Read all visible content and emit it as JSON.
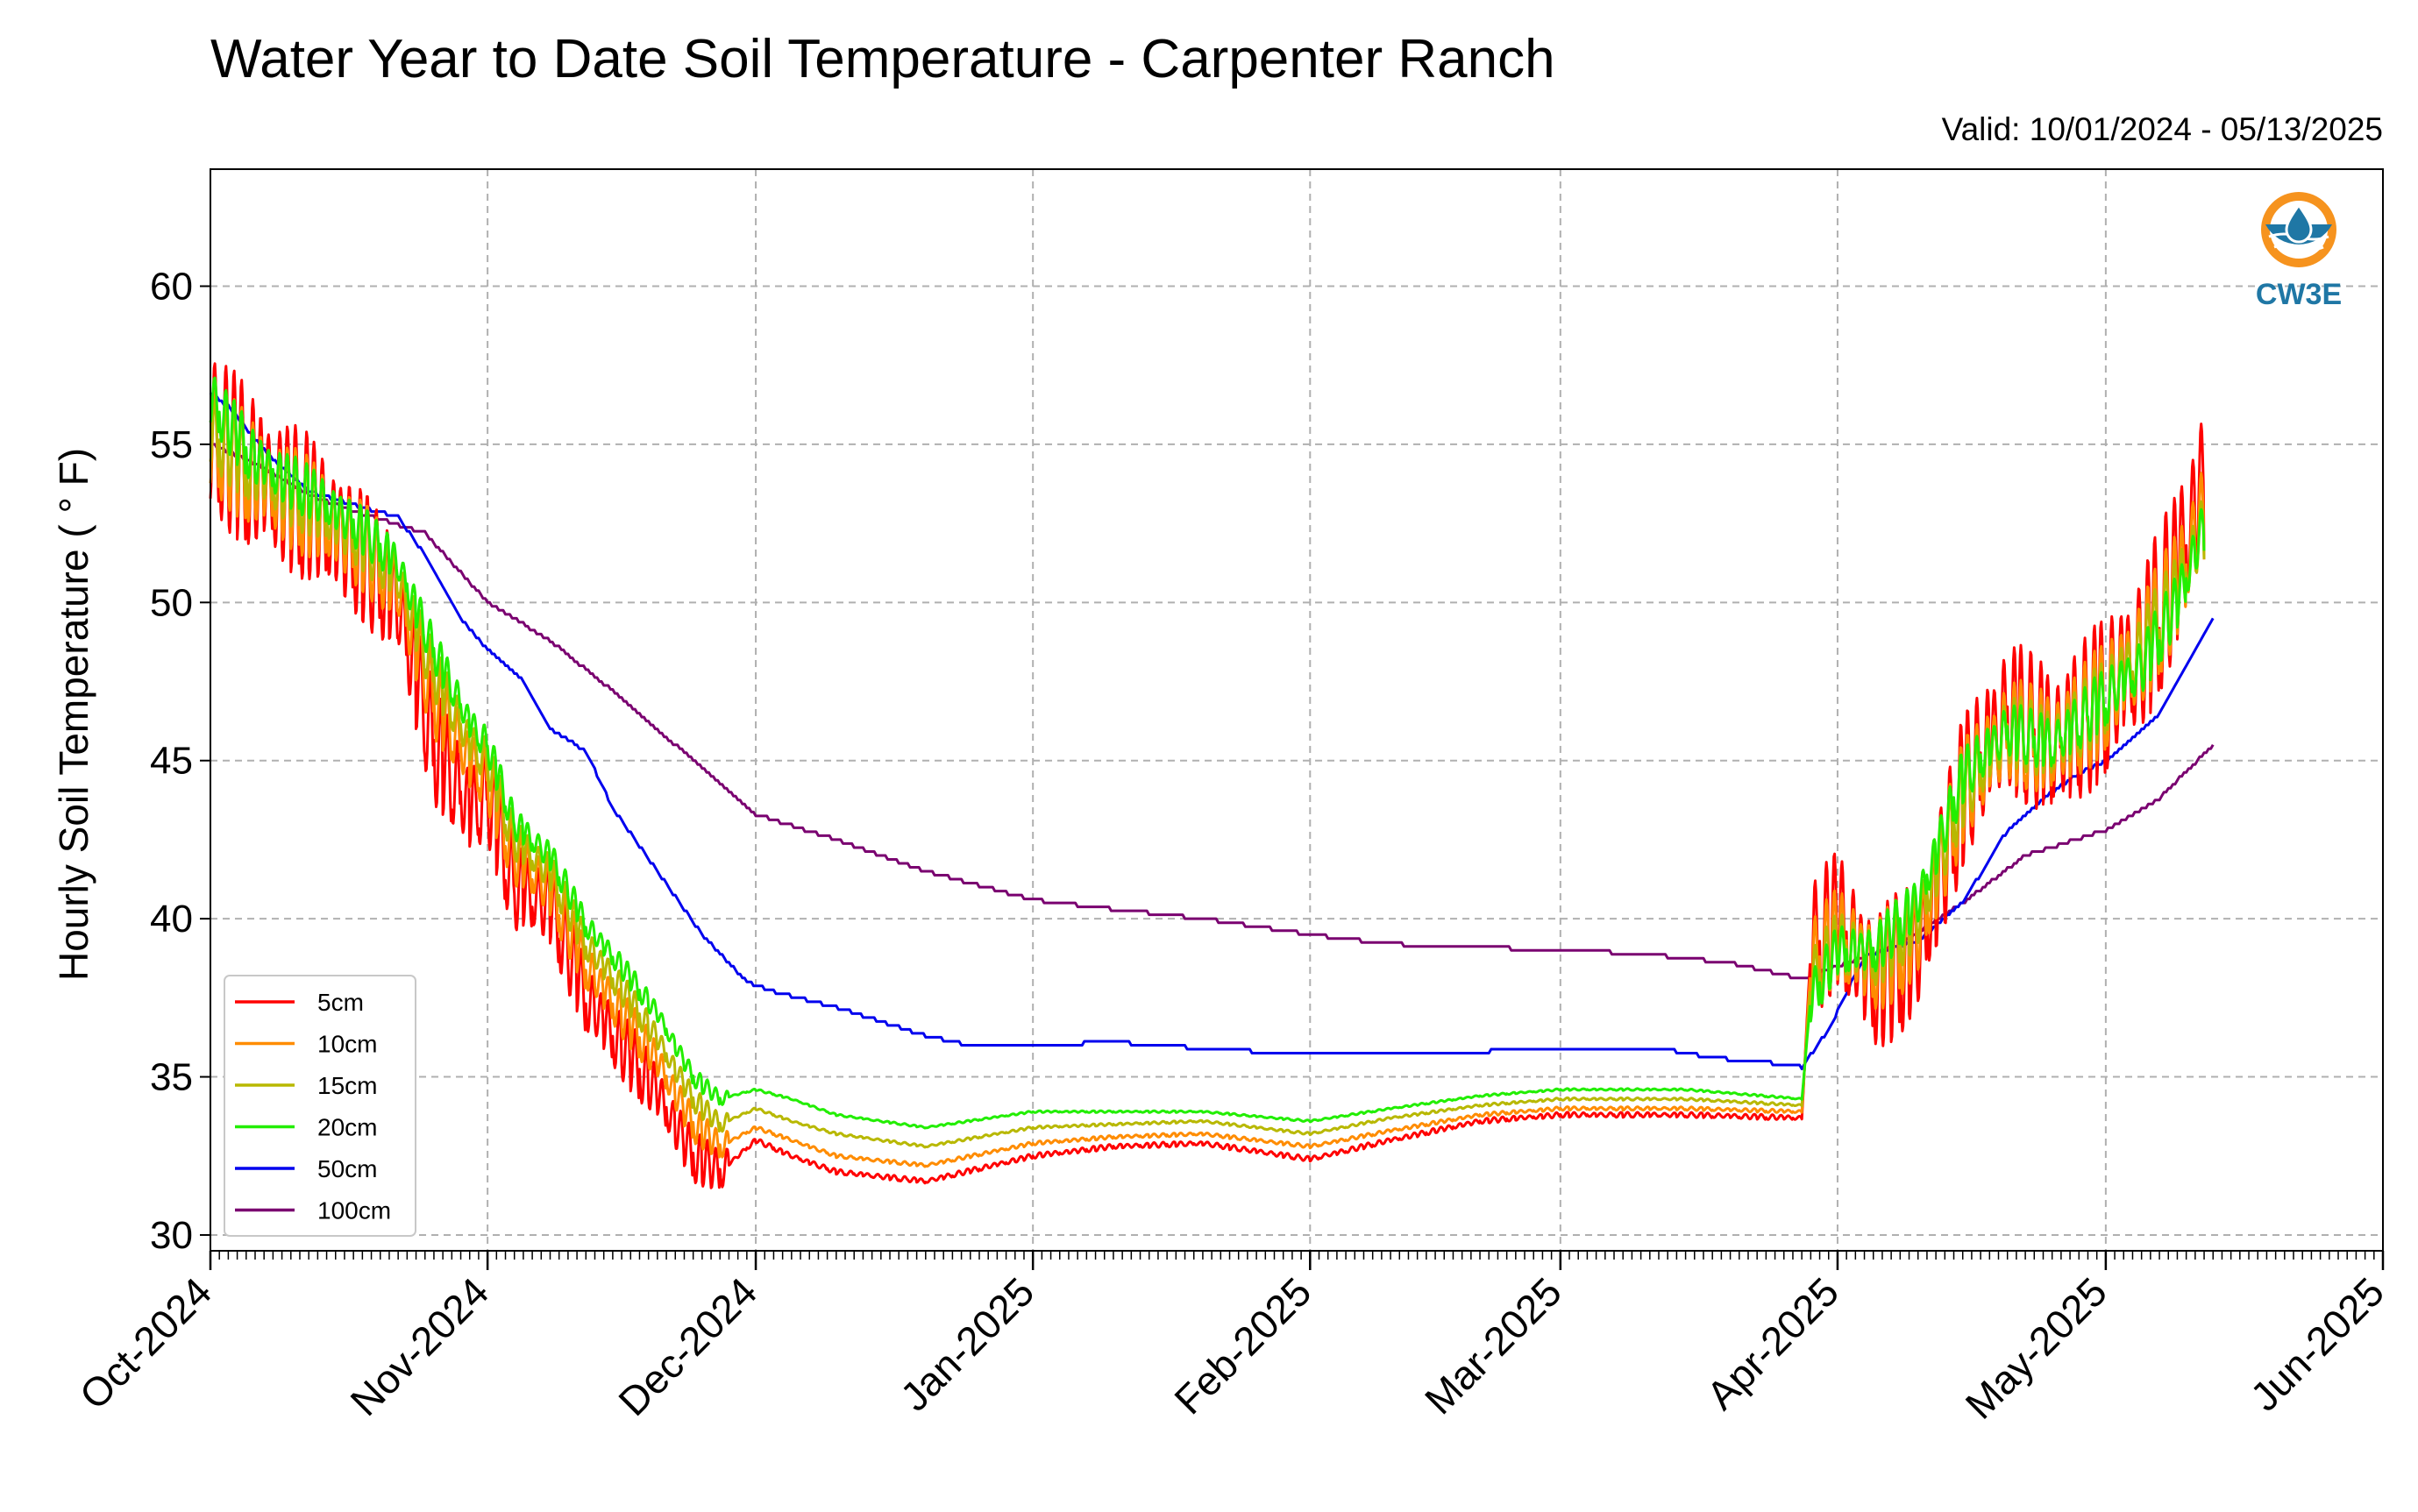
{
  "chart_data": {
    "type": "line",
    "title": "Water Year to Date Soil Temperature - Carpenter Ranch",
    "subtitle": "Valid: 10/01/2024 - 05/13/2025",
    "xlabel": "",
    "ylabel": "Hourly Soil Temperature ( ° F)",
    "xlim": [
      "2024-10-01",
      "2025-06-01"
    ],
    "ylim": [
      29.5,
      63.7
    ],
    "yticks": [
      30,
      35,
      40,
      45,
      50,
      55,
      60
    ],
    "xticks": [
      {
        "date": "2024-10-01",
        "label": "Oct-2024"
      },
      {
        "date": "2024-11-01",
        "label": "Nov-2024"
      },
      {
        "date": "2024-12-01",
        "label": "Dec-2024"
      },
      {
        "date": "2025-01-01",
        "label": "Jan-2025"
      },
      {
        "date": "2025-02-01",
        "label": "Feb-2025"
      },
      {
        "date": "2025-03-01",
        "label": "Mar-2025"
      },
      {
        "date": "2025-04-01",
        "label": "Apr-2025"
      },
      {
        "date": "2025-05-01",
        "label": "May-2025"
      },
      {
        "date": "2025-06-01",
        "label": "Jun-2025"
      }
    ],
    "grid": true,
    "legend_position": "lower-left",
    "logo_text": "CW3E",
    "series": [
      {
        "name": "5cm",
        "color": "#ff0000",
        "amplitude": 5.5,
        "points": [
          [
            "2024-10-01",
            55.5
          ],
          [
            "2024-10-06",
            54.0
          ],
          [
            "2024-10-12",
            53.0
          ],
          [
            "2024-10-18",
            51.5
          ],
          [
            "2024-10-22",
            50.0
          ],
          [
            "2024-10-26",
            45.5
          ],
          [
            "2024-10-30",
            43.5
          ],
          [
            "2024-11-01",
            44.0
          ],
          [
            "2024-11-04",
            41.0
          ],
          [
            "2024-11-08",
            40.5
          ],
          [
            "2024-11-12",
            37.5
          ],
          [
            "2024-11-16",
            36.0
          ],
          [
            "2024-11-20",
            34.5
          ],
          [
            "2024-11-24",
            32.5
          ],
          [
            "2024-11-27",
            32.0
          ],
          [
            "2024-12-01",
            33.0
          ],
          [
            "2024-12-05",
            32.5
          ],
          [
            "2024-12-10",
            32.0
          ],
          [
            "2024-12-20",
            31.7
          ],
          [
            "2025-01-01",
            32.5
          ],
          [
            "2025-01-10",
            32.8
          ],
          [
            "2025-01-20",
            32.9
          ],
          [
            "2025-02-01",
            32.4
          ],
          [
            "2025-02-10",
            33.0
          ],
          [
            "2025-02-20",
            33.6
          ],
          [
            "2025-03-01",
            33.8
          ],
          [
            "2025-03-15",
            33.8
          ],
          [
            "2025-03-28",
            33.7
          ],
          [
            "2025-03-29",
            39.0
          ],
          [
            "2025-04-01",
            40.0
          ],
          [
            "2025-04-05",
            38.0
          ],
          [
            "2025-04-10",
            39.0
          ],
          [
            "2025-04-15",
            44.0
          ],
          [
            "2025-04-20",
            46.5
          ],
          [
            "2025-04-25",
            45.5
          ],
          [
            "2025-05-01",
            47.0
          ],
          [
            "2025-05-05",
            48.5
          ],
          [
            "2025-05-09",
            51.0
          ],
          [
            "2025-05-12",
            54.0
          ]
        ]
      },
      {
        "name": "10cm",
        "color": "#ff8c00",
        "amplitude": 3.8,
        "points": [
          [
            "2024-10-01",
            55.3
          ],
          [
            "2024-10-06",
            54.0
          ],
          [
            "2024-10-12",
            53.0
          ],
          [
            "2024-10-18",
            51.8
          ],
          [
            "2024-10-22",
            50.5
          ],
          [
            "2024-10-26",
            47.0
          ],
          [
            "2024-10-30",
            45.0
          ],
          [
            "2024-11-01",
            44.5
          ],
          [
            "2024-11-04",
            42.0
          ],
          [
            "2024-11-08",
            41.0
          ],
          [
            "2024-11-12",
            38.5
          ],
          [
            "2024-11-16",
            37.0
          ],
          [
            "2024-11-20",
            35.5
          ],
          [
            "2024-11-24",
            33.5
          ],
          [
            "2024-11-27",
            32.8
          ],
          [
            "2024-12-01",
            33.4
          ],
          [
            "2024-12-05",
            33.0
          ],
          [
            "2024-12-10",
            32.5
          ],
          [
            "2024-12-20",
            32.2
          ],
          [
            "2025-01-01",
            32.9
          ],
          [
            "2025-01-10",
            33.1
          ],
          [
            "2025-01-20",
            33.2
          ],
          [
            "2025-02-01",
            32.8
          ],
          [
            "2025-02-10",
            33.3
          ],
          [
            "2025-02-20",
            33.8
          ],
          [
            "2025-03-01",
            34.0
          ],
          [
            "2025-03-15",
            34.0
          ],
          [
            "2025-03-28",
            33.9
          ],
          [
            "2025-03-29",
            38.5
          ],
          [
            "2025-04-01",
            39.5
          ],
          [
            "2025-04-05",
            38.5
          ],
          [
            "2025-04-10",
            39.5
          ],
          [
            "2025-04-15",
            44.0
          ],
          [
            "2025-04-20",
            46.0
          ],
          [
            "2025-04-25",
            45.5
          ],
          [
            "2025-05-01",
            47.0
          ],
          [
            "2025-05-05",
            48.5
          ],
          [
            "2025-05-09",
            50.5
          ],
          [
            "2025-05-12",
            53.0
          ]
        ]
      },
      {
        "name": "15cm",
        "color": "#b8b800",
        "amplitude": 2.6,
        "points": [
          [
            "2024-10-01",
            55.5
          ],
          [
            "2024-10-06",
            54.2
          ],
          [
            "2024-10-12",
            53.2
          ],
          [
            "2024-10-18",
            52.0
          ],
          [
            "2024-10-22",
            50.8
          ],
          [
            "2024-10-26",
            47.8
          ],
          [
            "2024-10-30",
            45.6
          ],
          [
            "2024-11-01",
            45.0
          ],
          [
            "2024-11-04",
            42.5
          ],
          [
            "2024-11-08",
            41.5
          ],
          [
            "2024-11-12",
            39.2
          ],
          [
            "2024-11-16",
            37.8
          ],
          [
            "2024-11-20",
            36.2
          ],
          [
            "2024-11-24",
            34.3
          ],
          [
            "2024-11-27",
            33.5
          ],
          [
            "2024-12-01",
            34.0
          ],
          [
            "2024-12-05",
            33.6
          ],
          [
            "2024-12-10",
            33.2
          ],
          [
            "2024-12-20",
            32.8
          ],
          [
            "2025-01-01",
            33.4
          ],
          [
            "2025-01-10",
            33.5
          ],
          [
            "2025-01-20",
            33.6
          ],
          [
            "2025-02-01",
            33.2
          ],
          [
            "2025-02-10",
            33.7
          ],
          [
            "2025-02-20",
            34.1
          ],
          [
            "2025-03-01",
            34.3
          ],
          [
            "2025-03-15",
            34.3
          ],
          [
            "2025-03-28",
            34.1
          ],
          [
            "2025-03-29",
            38.0
          ],
          [
            "2025-04-01",
            39.2
          ],
          [
            "2025-04-05",
            38.8
          ],
          [
            "2025-04-10",
            40.0
          ],
          [
            "2025-04-15",
            44.0
          ],
          [
            "2025-04-20",
            46.0
          ],
          [
            "2025-04-25",
            45.5
          ],
          [
            "2025-05-01",
            47.0
          ],
          [
            "2025-05-05",
            48.5
          ],
          [
            "2025-05-09",
            50.3
          ],
          [
            "2025-05-12",
            52.5
          ]
        ]
      },
      {
        "name": "20cm",
        "color": "#22ee00",
        "amplitude": 2.0,
        "points": [
          [
            "2024-10-01",
            56.5
          ],
          [
            "2024-10-06",
            54.5
          ],
          [
            "2024-10-12",
            53.5
          ],
          [
            "2024-10-18",
            52.3
          ],
          [
            "2024-10-22",
            51.2
          ],
          [
            "2024-10-26",
            48.5
          ],
          [
            "2024-10-30",
            46.2
          ],
          [
            "2024-11-01",
            45.5
          ],
          [
            "2024-11-04",
            43.0
          ],
          [
            "2024-11-08",
            42.0
          ],
          [
            "2024-11-12",
            39.8
          ],
          [
            "2024-11-16",
            38.5
          ],
          [
            "2024-11-20",
            37.0
          ],
          [
            "2024-11-24",
            35.0
          ],
          [
            "2024-11-27",
            34.3
          ],
          [
            "2024-12-01",
            34.6
          ],
          [
            "2024-12-05",
            34.3
          ],
          [
            "2024-12-10",
            33.8
          ],
          [
            "2024-12-20",
            33.4
          ],
          [
            "2025-01-01",
            33.9
          ],
          [
            "2025-01-10",
            33.9
          ],
          [
            "2025-01-20",
            33.9
          ],
          [
            "2025-02-01",
            33.6
          ],
          [
            "2025-02-10",
            34.0
          ],
          [
            "2025-02-20",
            34.4
          ],
          [
            "2025-03-01",
            34.6
          ],
          [
            "2025-03-15",
            34.6
          ],
          [
            "2025-03-28",
            34.3
          ],
          [
            "2025-03-29",
            37.5
          ],
          [
            "2025-04-01",
            39.0
          ],
          [
            "2025-04-05",
            39.0
          ],
          [
            "2025-04-10",
            40.5
          ],
          [
            "2025-04-15",
            44.5
          ],
          [
            "2025-04-20",
            46.0
          ],
          [
            "2025-04-25",
            45.5
          ],
          [
            "2025-05-01",
            47.0
          ],
          [
            "2025-05-05",
            48.0
          ],
          [
            "2025-05-09",
            50.0
          ],
          [
            "2025-05-12",
            52.5
          ]
        ]
      },
      {
        "name": "50cm",
        "color": "#0000ee",
        "amplitude": 0,
        "points": [
          [
            "2024-10-01",
            56.6
          ],
          [
            "2024-10-03",
            56.2
          ],
          [
            "2024-10-08",
            54.5
          ],
          [
            "2024-10-12",
            53.5
          ],
          [
            "2024-10-18",
            53.0
          ],
          [
            "2024-10-22",
            52.7
          ],
          [
            "2024-10-25",
            51.5
          ],
          [
            "2024-10-29",
            49.5
          ],
          [
            "2024-11-01",
            48.5
          ],
          [
            "2024-11-05",
            47.5
          ],
          [
            "2024-11-08",
            46.0
          ],
          [
            "2024-11-12",
            45.3
          ],
          [
            "2024-11-15",
            43.5
          ],
          [
            "2024-11-20",
            41.5
          ],
          [
            "2024-11-25",
            39.5
          ],
          [
            "2024-11-30",
            38.0
          ],
          [
            "2024-12-03",
            37.7
          ],
          [
            "2024-12-10",
            37.2
          ],
          [
            "2024-12-20",
            36.3
          ],
          [
            "2024-12-25",
            36.0
          ],
          [
            "2025-01-01",
            36.0
          ],
          [
            "2025-01-10",
            36.1
          ],
          [
            "2025-01-20",
            35.9
          ],
          [
            "2025-02-01",
            35.7
          ],
          [
            "2025-02-10",
            35.7
          ],
          [
            "2025-02-20",
            35.8
          ],
          [
            "2025-03-01",
            35.9
          ],
          [
            "2025-03-12",
            35.9
          ],
          [
            "2025-03-18",
            35.6
          ],
          [
            "2025-03-26",
            35.4
          ],
          [
            "2025-03-28",
            35.3
          ],
          [
            "2025-03-31",
            36.5
          ],
          [
            "2025-04-04",
            38.8
          ],
          [
            "2025-04-10",
            39.3
          ],
          [
            "2025-04-15",
            40.5
          ],
          [
            "2025-04-20",
            42.8
          ],
          [
            "2025-04-25",
            44.0
          ],
          [
            "2025-04-28",
            44.6
          ],
          [
            "2025-05-01",
            45.0
          ],
          [
            "2025-05-04",
            45.7
          ],
          [
            "2025-05-07",
            46.5
          ],
          [
            "2025-05-10",
            48.0
          ],
          [
            "2025-05-13",
            49.5
          ]
        ]
      },
      {
        "name": "100cm",
        "color": "#7a0070",
        "amplitude": 0,
        "points": [
          [
            "2024-10-01",
            55.0
          ],
          [
            "2024-10-06",
            54.4
          ],
          [
            "2024-10-12",
            53.4
          ],
          [
            "2024-10-18",
            52.8
          ],
          [
            "2024-10-25",
            52.2
          ],
          [
            "2024-11-01",
            50.0
          ],
          [
            "2024-11-08",
            48.8
          ],
          [
            "2024-11-15",
            47.2
          ],
          [
            "2024-11-22",
            45.5
          ],
          [
            "2024-11-28",
            44.0
          ],
          [
            "2024-12-01",
            43.3
          ],
          [
            "2024-12-10",
            42.5
          ],
          [
            "2024-12-20",
            41.5
          ],
          [
            "2025-01-01",
            40.6
          ],
          [
            "2025-01-10",
            40.3
          ],
          [
            "2025-01-20",
            40.0
          ],
          [
            "2025-02-01",
            39.5
          ],
          [
            "2025-02-10",
            39.2
          ],
          [
            "2025-02-20",
            39.1
          ],
          [
            "2025-03-01",
            39.0
          ],
          [
            "2025-03-10",
            38.9
          ],
          [
            "2025-03-20",
            38.6
          ],
          [
            "2025-03-28",
            38.1
          ],
          [
            "2025-04-01",
            38.5
          ],
          [
            "2025-04-08",
            39.2
          ],
          [
            "2025-04-15",
            40.5
          ],
          [
            "2025-04-22",
            42.0
          ],
          [
            "2025-05-01",
            42.8
          ],
          [
            "2025-05-07",
            43.8
          ],
          [
            "2025-05-13",
            45.5
          ]
        ]
      }
    ]
  }
}
